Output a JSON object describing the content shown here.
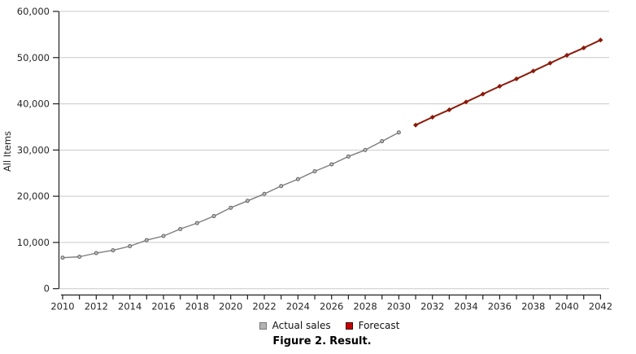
{
  "figure": {
    "caption_label": "Figure 2.",
    "caption_text": "Result."
  },
  "colors": {
    "grid": "#c9c9c9",
    "axis": "#1f1f1f",
    "tick_text": "#262626",
    "actual_line": "#7d7d7d",
    "actual_marker_fill": "#bdbdbd",
    "actual_marker_stroke": "#636363",
    "forecast_line": "#8b1a0a",
    "legend_actual_fill": "#b3b3b3",
    "legend_actual_border": "#767676",
    "legend_forecast_fill": "#c40000",
    "legend_forecast_border": "#3c0b00"
  },
  "chart_data": {
    "type": "line",
    "title": "Figure 2. Result.",
    "xlabel": "",
    "ylabel": "All Items",
    "xlim": [
      2010,
      2042
    ],
    "ylim": [
      0,
      60000
    ],
    "ytick_interval": 10000,
    "ytick_labels": [
      "0",
      "10,000",
      "20,000",
      "30,000",
      "40,000",
      "50,000",
      "60,000"
    ],
    "xtick_label_years": [
      2010,
      2012,
      2014,
      2016,
      2018,
      2020,
      2022,
      2024,
      2026,
      2028,
      2030,
      2032,
      2034,
      2036,
      2038,
      2040,
      2042
    ],
    "xtick_minor_every_year": true,
    "grid": "horizontal",
    "legend_position": "bottom",
    "series": [
      {
        "name": "Actual sales",
        "marker": "circle",
        "color": "#7d7d7d",
        "x": [
          2010,
          2011,
          2012,
          2013,
          2014,
          2015,
          2016,
          2017,
          2018,
          2019,
          2020,
          2021,
          2022,
          2023,
          2024,
          2025,
          2026,
          2027,
          2028,
          2029,
          2030
        ],
        "values": [
          6700,
          6900,
          7700,
          8300,
          9200,
          10500,
          11400,
          12900,
          14200,
          15700,
          17500,
          19000,
          20500,
          22200,
          23700,
          25400,
          26900,
          28600,
          30000,
          31900,
          33800
        ]
      },
      {
        "name": "Forecast",
        "marker": "diamond",
        "color": "#8b1a0a",
        "x": [
          2031,
          2032,
          2033,
          2034,
          2035,
          2036,
          2037,
          2038,
          2039,
          2040,
          2041,
          2042
        ],
        "values": [
          35400,
          37100,
          38700,
          40400,
          42100,
          43800,
          45400,
          47100,
          48800,
          50500,
          52100,
          53800
        ]
      }
    ]
  }
}
